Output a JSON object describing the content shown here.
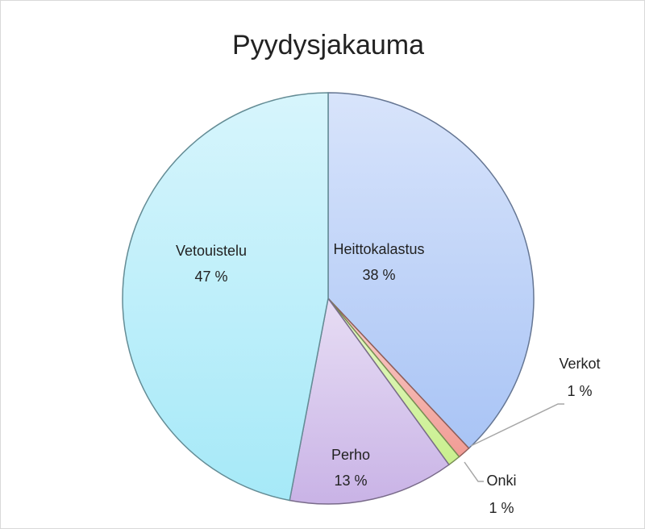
{
  "chart_data": {
    "type": "pie",
    "title": "Pyydysjakauma",
    "categories": [
      "Heittokalastus",
      "Verkot",
      "Onki",
      "Perho",
      "Vetouistelu"
    ],
    "values": [
      38,
      1,
      1,
      13,
      47
    ],
    "value_labels": [
      "38 %",
      "1 %",
      "1 %",
      "13 %",
      "47 %"
    ],
    "colors": [
      "#a9c4f5",
      "#f19c95",
      "#c9ef8d",
      "#c9b3e6",
      "#a6e9f8"
    ]
  }
}
